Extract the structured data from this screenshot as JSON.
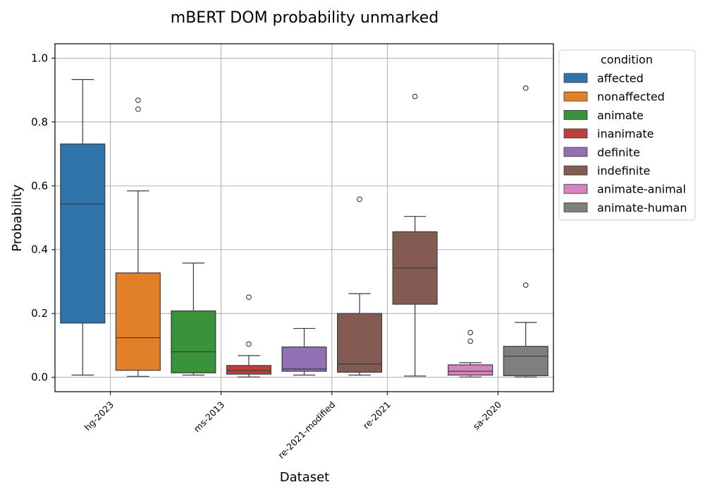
{
  "chart_data": {
    "type": "box",
    "title": "mBERT DOM probability unmarked",
    "xlabel": "Dataset",
    "ylabel": "Probability",
    "ylim": [
      -0.045,
      1.045
    ],
    "yticks": [
      "0.0",
      "0.2",
      "0.4",
      "0.6",
      "0.8",
      "1.0"
    ],
    "categories": [
      "hg-2023",
      "ms-2013",
      "re-2021-modified",
      "re-2021",
      "sa-2020"
    ],
    "grid": true,
    "legend": {
      "title": "condition",
      "placement": "outside-right-top",
      "entries": [
        {
          "label": "affected",
          "color": "#2e74aa"
        },
        {
          "label": "nonaffected",
          "color": "#e2802a"
        },
        {
          "label": "animate",
          "color": "#3a923a"
        },
        {
          "label": "inanimate",
          "color": "#c03d3e"
        },
        {
          "label": "definite",
          "color": "#9270b4"
        },
        {
          "label": "indefinite",
          "color": "#845b53"
        },
        {
          "label": "animate-animal",
          "color": "#d684bd"
        },
        {
          "label": "animate-human",
          "color": "#7f7f7f"
        }
      ]
    },
    "boxes": [
      {
        "condition": "affected",
        "slot": 0,
        "whislo": 0.007,
        "q1": 0.17,
        "med": 0.543,
        "q3": 0.731,
        "whishi": 0.933,
        "fliers": []
      },
      {
        "condition": "nonaffected",
        "slot": 1,
        "whislo": 0.003,
        "q1": 0.022,
        "med": 0.124,
        "q3": 0.327,
        "whishi": 0.584,
        "fliers": [
          0.84,
          0.868
        ]
      },
      {
        "condition": "animate",
        "slot": 2,
        "whislo": 0.007,
        "q1": 0.014,
        "med": 0.08,
        "q3": 0.208,
        "whishi": 0.358,
        "fliers": []
      },
      {
        "condition": "inanimate",
        "slot": 3,
        "whislo": 0.001,
        "q1": 0.01,
        "med": 0.021,
        "q3": 0.037,
        "whishi": 0.068,
        "fliers": [
          0.104,
          0.251
        ]
      },
      {
        "condition": "definite",
        "slot": 4,
        "whislo": 0.007,
        "q1": 0.019,
        "med": 0.026,
        "q3": 0.095,
        "whishi": 0.153,
        "fliers": []
      },
      {
        "condition": "indefinite",
        "slot": 5,
        "whislo": 0.007,
        "q1": 0.016,
        "med": 0.042,
        "q3": 0.2,
        "whishi": 0.262,
        "fliers": [
          0.558
        ]
      },
      {
        "condition": "indefinite",
        "slot": 6,
        "whislo": 0.004,
        "q1": 0.229,
        "med": 0.342,
        "q3": 0.456,
        "whishi": 0.504,
        "fliers": [
          0.88
        ]
      },
      {
        "condition": "animate-animal",
        "slot": 7,
        "whislo": 0.001,
        "q1": 0.007,
        "med": 0.019,
        "q3": 0.039,
        "whishi": 0.046,
        "fliers": [
          0.113,
          0.14
        ]
      },
      {
        "condition": "animate-human",
        "slot": 8,
        "whislo": 0.001,
        "q1": 0.005,
        "med": 0.066,
        "q3": 0.097,
        "whishi": 0.172,
        "fliers": [
          0.289,
          0.906
        ]
      }
    ],
    "xtick_slots": [
      0.5,
      2.5,
      4.5,
      5.5,
      7.5
    ],
    "slot_count": 9
  }
}
